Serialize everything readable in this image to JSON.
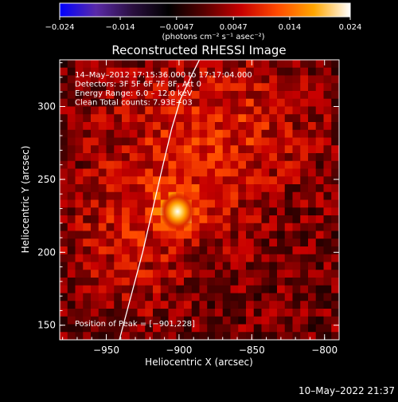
{
  "colors": {
    "background": "#000000",
    "text": "#ffffff",
    "colormap_stops": [
      "#0000ff",
      "#5a2aa8",
      "#2a0f3f",
      "#000000",
      "#5a0000",
      "#c80000",
      "#ff4a00",
      "#ffa600",
      "#ffffff"
    ]
  },
  "colorbar": {
    "ticks": [
      "-0.024",
      "-0.014",
      "-0.0047",
      "0.0047",
      "0.014",
      "0.024"
    ],
    "tick_values": [
      -0.024,
      -0.014,
      -0.0047,
      0.0047,
      0.014,
      0.024
    ],
    "range": [
      -0.024,
      0.024
    ],
    "unit": "(photons cm⁻² s⁻¹ asec⁻²)"
  },
  "chart_data": {
    "type": "heatmap",
    "title": "Reconstructed RHESSI Image",
    "xlabel": "Heliocentric X (arcsec)",
    "ylabel": "Heliocentric Y (arcsec)",
    "xlim": [
      -982,
      -790
    ],
    "ylim": [
      140,
      332
    ],
    "xticks": [
      -950,
      -900,
      -850,
      -800
    ],
    "xtick_labels": [
      "−950",
      "−900",
      "−850",
      "−800"
    ],
    "yticks": [
      150,
      200,
      250,
      300
    ],
    "ytick_labels": [
      "150",
      "200",
      "250",
      "300"
    ],
    "grid": false,
    "peak": {
      "x": -901,
      "y": 228
    },
    "limb_curve": {
      "x": [
        -941,
        -933,
        -925,
        -918,
        -911,
        -905,
        -899,
        -892,
        -886
      ],
      "y": [
        140,
        170,
        200,
        230,
        260,
        285,
        305,
        320,
        332
      ]
    },
    "annotations": [
      "14–May–2012 17:15:36.000 to 17:17:04.000",
      "Detectors: 3F 5F 6F 7F 8F, Att 0",
      "Energy Range: 6.0 – 12.0 keV",
      "Clean     Total counts: 7.93E+03"
    ],
    "peak_label": "Position of Peak = [−901,228]"
  },
  "footer": {
    "timestamp": "10–May–2022 21:37"
  }
}
